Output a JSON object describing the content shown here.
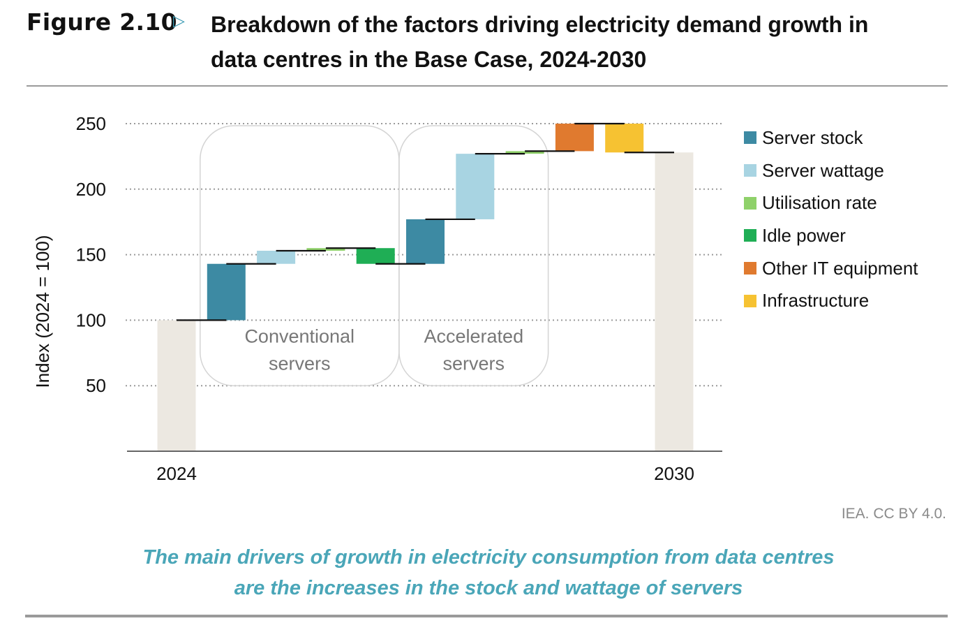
{
  "figure": {
    "label": "Figure 2.10",
    "title_line1": "Breakdown of the factors driving electricity demand growth in",
    "title_line2": "data centres in the Base Case, 2024-2030",
    "source": "IEA. CC BY 4.0.",
    "caption_line1": "The main drivers of growth in electricity consumption from data centres",
    "caption_line2": "are the increases in the stock and wattage of servers"
  },
  "chart_data": {
    "type": "bar",
    "subtype": "waterfall",
    "title": "Breakdown of the factors driving electricity demand growth in data centres in the Base Case, 2024-2030",
    "xlabel": "",
    "ylabel": "Index (2024 = 100)",
    "ylim": [
      0,
      250
    ],
    "yticks": [
      50,
      100,
      150,
      200,
      250
    ],
    "grid": true,
    "legend_position": "right",
    "series": [
      {
        "name": "Server stock",
        "color": "#3d8aa3"
      },
      {
        "name": "Server wattage",
        "color": "#a8d4e2"
      },
      {
        "name": "Utilisation rate",
        "color": "#8fd16a"
      },
      {
        "name": "Idle power",
        "color": "#1fae55"
      },
      {
        "name": "Other IT equipment",
        "color": "#e07a2f"
      },
      {
        "name": "Infrastructure",
        "color": "#f6c232"
      }
    ],
    "steps": [
      {
        "label": "2024",
        "kind": "total",
        "value": 100
      },
      {
        "label": "Server stock",
        "group": "Conventional servers",
        "kind": "delta",
        "value": 43
      },
      {
        "label": "Server wattage",
        "group": "Conventional servers",
        "kind": "delta",
        "value": 10
      },
      {
        "label": "Utilisation rate",
        "group": "Conventional servers",
        "kind": "delta",
        "value": 2
      },
      {
        "label": "Idle power",
        "group": "Conventional servers",
        "kind": "delta",
        "value": -12
      },
      {
        "label": "Server stock",
        "group": "Accelerated servers",
        "kind": "delta",
        "value": 34
      },
      {
        "label": "Server wattage",
        "group": "Accelerated servers",
        "kind": "delta",
        "value": 50
      },
      {
        "label": "Utilisation rate",
        "group": "Accelerated servers",
        "kind": "delta",
        "value": 2
      },
      {
        "label": "Other IT equipment",
        "kind": "delta",
        "value": 21
      },
      {
        "label": "Infrastructure",
        "kind": "delta",
        "value": -22
      },
      {
        "label": "2030",
        "kind": "total",
        "value": 228
      }
    ],
    "group_labels": {
      "conventional_line1": "Conventional",
      "conventional_line2": "servers",
      "accelerated_line1": "Accelerated",
      "accelerated_line2": "servers"
    },
    "category_labels": {
      "start": "2024",
      "end": "2030"
    },
    "total_color": "#ece8e1"
  }
}
